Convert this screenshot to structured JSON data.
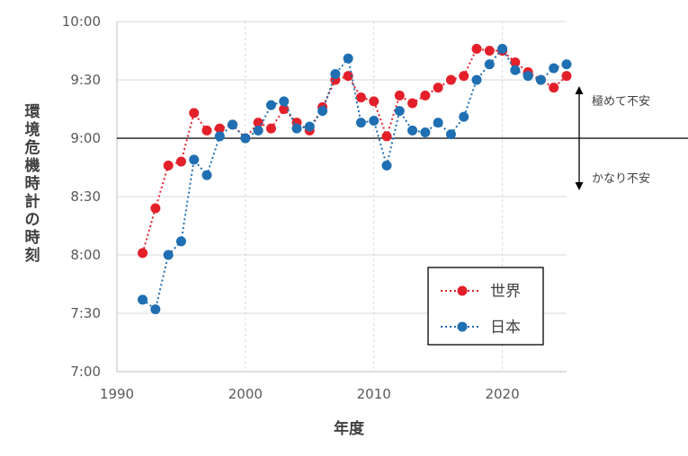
{
  "chart_data": {
    "type": "line",
    "title": "",
    "xlabel": "年度",
    "ylabel": "環境危機時計の時刻",
    "xlim": [
      1990,
      2025
    ],
    "ylim": [
      420,
      600
    ],
    "x_ticks": [
      1990,
      2000,
      2010,
      2020
    ],
    "x_tick_labels": [
      "1990",
      "2000",
      "2010",
      "2020"
    ],
    "y_ticks": [
      420,
      450,
      480,
      510,
      540,
      570,
      600
    ],
    "y_tick_labels": [
      "7:00",
      "7:30",
      "8:00",
      "8:30",
      "9:00",
      "9:30",
      "10:00"
    ],
    "reference_line": {
      "y": 540
    },
    "grid": {
      "x": true,
      "y": true
    },
    "legend": {
      "position": "bottom-right"
    },
    "annotations": {
      "upper": "極めて不安",
      "lower": "かなり不安"
    },
    "series": [
      {
        "name": "世界",
        "color": "#e3202a",
        "x": [
          1992,
          1993,
          1994,
          1995,
          1996,
          1997,
          1998,
          1999,
          2000,
          2001,
          2002,
          2003,
          2004,
          2005,
          2006,
          2007,
          2008,
          2009,
          2010,
          2011,
          2012,
          2013,
          2014,
          2015,
          2016,
          2017,
          2018,
          2019,
          2020,
          2021,
          2022,
          2023,
          2024,
          2025
        ],
        "y": [
          481,
          504,
          526,
          528,
          553,
          544,
          545,
          547,
          540,
          548,
          545,
          555,
          548,
          544,
          556,
          570,
          572,
          561,
          559,
          541,
          562,
          558,
          562,
          566,
          570,
          572,
          586,
          585,
          585,
          579,
          574,
          570,
          566,
          572
        ]
      },
      {
        "name": "日本",
        "color": "#1f6fb2",
        "x": [
          1992,
          1993,
          1994,
          1995,
          1996,
          1997,
          1998,
          1999,
          2000,
          2001,
          2002,
          2003,
          2004,
          2005,
          2006,
          2007,
          2008,
          2009,
          2010,
          2011,
          2012,
          2013,
          2014,
          2015,
          2016,
          2017,
          2018,
          2019,
          2020,
          2021,
          2022,
          2023,
          2024,
          2025
        ],
        "y": [
          457,
          452,
          480,
          487,
          529,
          521,
          541,
          547,
          540,
          544,
          557,
          559,
          545,
          546,
          554,
          573,
          581,
          548,
          549,
          526,
          554,
          544,
          543,
          548,
          542,
          551,
          570,
          578,
          586,
          575,
          572,
          570,
          576,
          578
        ]
      }
    ]
  }
}
